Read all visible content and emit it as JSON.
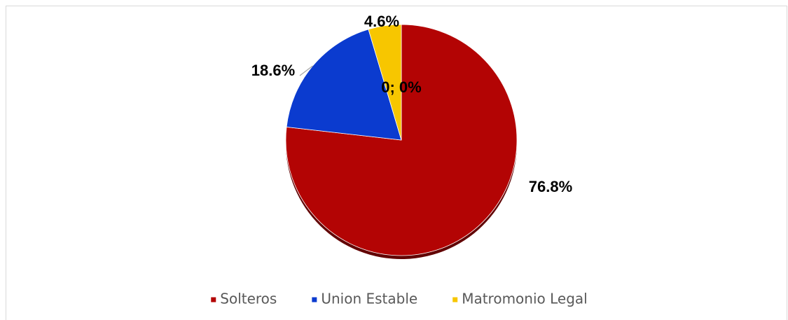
{
  "chart_data": {
    "type": "pie",
    "categories": [
      "Solteros",
      "Union Estable",
      "Matromonio Legal",
      null
    ],
    "values": [
      76.8,
      18.6,
      4.6,
      0
    ],
    "value_labels": [
      "76.8%",
      "18.6%",
      "4.6%",
      "0; 0%"
    ],
    "colors": [
      "#b30404",
      "#0b3bcf",
      "#f7c600"
    ],
    "legend": "bottom"
  }
}
